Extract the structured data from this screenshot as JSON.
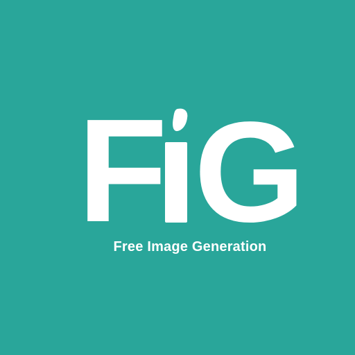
{
  "logo": {
    "wordmark": "FiG",
    "letters": [
      "F",
      "i",
      "G"
    ]
  },
  "tagline": "Free Image Generation",
  "colors": {
    "background": "#29A69A",
    "foreground": "#FFFFFF"
  }
}
